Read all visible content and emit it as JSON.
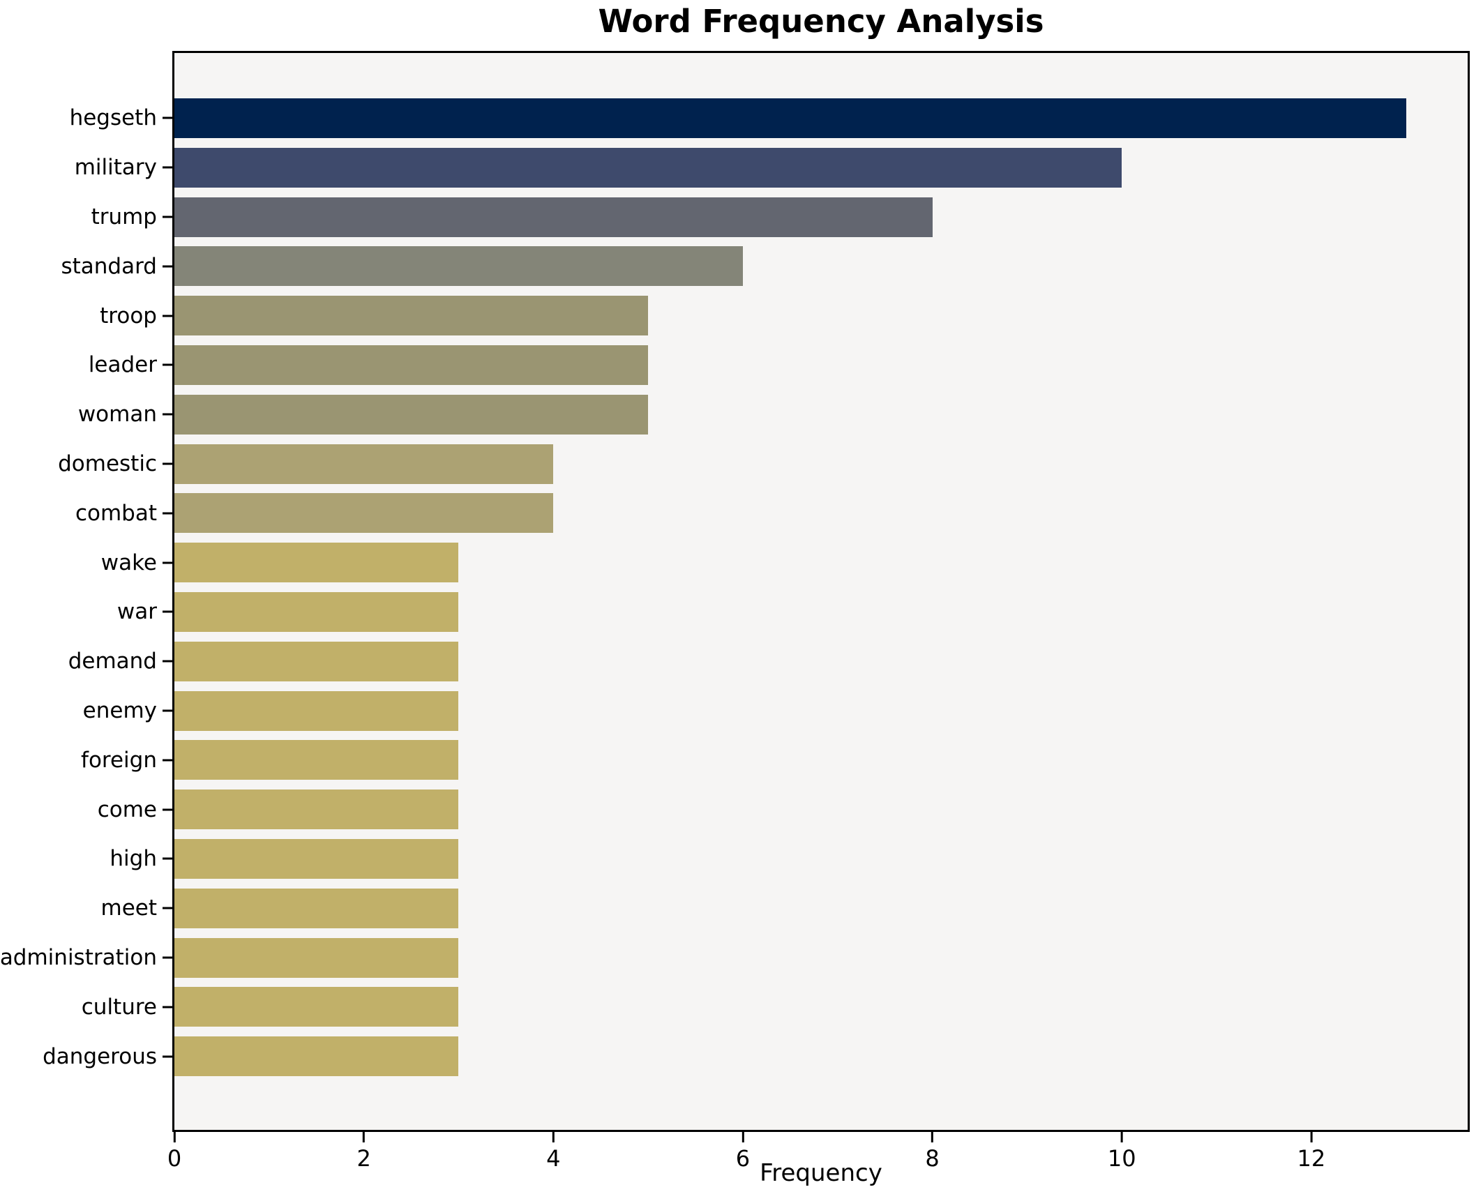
{
  "chart_data": {
    "type": "bar",
    "orientation": "horizontal",
    "title": "Word Frequency Analysis",
    "xlabel": "Frequency",
    "ylabel": "",
    "categories": [
      "hegseth",
      "military",
      "trump",
      "standard",
      "troop",
      "leader",
      "woman",
      "domestic",
      "combat",
      "wake",
      "war",
      "demand",
      "enemy",
      "foreign",
      "come",
      "high",
      "meet",
      "administration",
      "culture",
      "dangerous"
    ],
    "values": [
      13,
      10,
      8,
      6,
      5,
      5,
      5,
      4,
      4,
      3,
      3,
      3,
      3,
      3,
      3,
      3,
      3,
      3,
      3,
      3
    ],
    "bar_colors": [
      "#00224e",
      "#3e4a6c",
      "#636670",
      "#848578",
      "#9a9572",
      "#9a9572",
      "#9a9572",
      "#aca273",
      "#aca273",
      "#c1b069",
      "#c1b069",
      "#c1b069",
      "#c1b069",
      "#c1b069",
      "#c1b069",
      "#c1b069",
      "#c1b069",
      "#c1b069",
      "#c1b069",
      "#c1b069"
    ],
    "xticks": [
      0,
      2,
      4,
      6,
      8,
      10,
      12
    ],
    "xlim": [
      0,
      13.65
    ],
    "grid": false,
    "legend_position": "none",
    "plot_background": "#f6f5f4",
    "figure_background": "#ffffff",
    "spine_color": "#000000",
    "colormap": "cividis"
  }
}
